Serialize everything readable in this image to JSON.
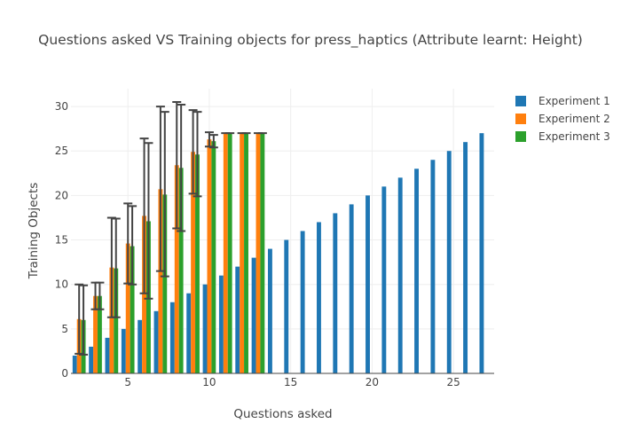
{
  "chart_data": {
    "type": "bar",
    "title": "Questions asked VS Training objects for press_haptics (Attribute learnt: Height)",
    "xlabel": "Questions asked",
    "ylabel": "Training Objects",
    "xlim": [
      1.5,
      27.5
    ],
    "ylim": [
      0,
      32
    ],
    "xticks": [
      5,
      10,
      15,
      20,
      25
    ],
    "yticks": [
      0,
      5,
      10,
      15,
      20,
      25,
      30
    ],
    "legend_position": "top-right",
    "grid": true,
    "series": [
      {
        "name": "Experiment 1",
        "color": "#1f77b4",
        "x": [
          2,
          3,
          4,
          5,
          6,
          7,
          8,
          9,
          10,
          11,
          12,
          13,
          14,
          15,
          16,
          17,
          18,
          19,
          20,
          21,
          22,
          23,
          24,
          25,
          26,
          27
        ],
        "values": [
          2,
          3,
          4,
          5,
          6,
          7,
          8,
          9,
          10,
          11,
          12,
          13,
          14,
          15,
          16,
          17,
          18,
          19,
          20,
          21,
          22,
          23,
          24,
          25,
          26,
          27
        ],
        "error_low": [],
        "error_high": []
      },
      {
        "name": "Experiment 2",
        "color": "#ff7f0e",
        "x": [
          2,
          3,
          4,
          5,
          6,
          7,
          8,
          9,
          10,
          11,
          12,
          13
        ],
        "values": [
          6.1,
          8.7,
          11.9,
          14.6,
          17.7,
          20.7,
          23.4,
          24.9,
          26.3,
          27,
          27,
          27
        ],
        "error_low": [
          2.2,
          7.2,
          6.3,
          10.1,
          9.0,
          11.5,
          16.3,
          20.2,
          25.5,
          27,
          27,
          27
        ],
        "error_high": [
          10.0,
          10.2,
          17.5,
          19.1,
          26.4,
          30.0,
          30.5,
          29.6,
          27.1,
          27,
          27,
          27
        ]
      },
      {
        "name": "Experiment 3",
        "color": "#2ca02c",
        "x": [
          2,
          3,
          4,
          5,
          6,
          7,
          8,
          9,
          10,
          11,
          12,
          13
        ],
        "values": [
          6.0,
          8.7,
          11.8,
          14.3,
          17.1,
          20.1,
          23.1,
          24.6,
          26.1,
          27,
          27,
          27
        ],
        "error_low": [
          2.1,
          7.2,
          6.3,
          10.0,
          8.4,
          10.9,
          16.0,
          19.9,
          25.4,
          27,
          27,
          27
        ],
        "error_high": [
          9.9,
          10.2,
          17.4,
          18.8,
          25.9,
          29.4,
          30.2,
          29.4,
          26.8,
          27,
          27,
          27
        ]
      }
    ]
  }
}
